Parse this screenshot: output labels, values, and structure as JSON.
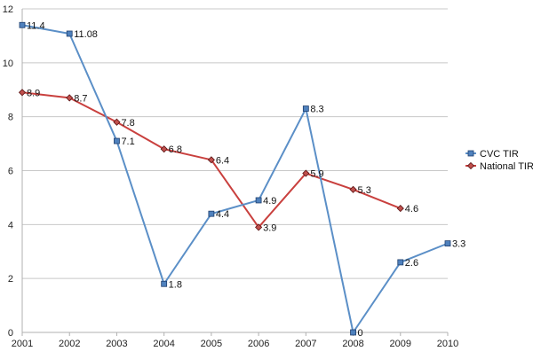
{
  "chart_data": {
    "type": "line",
    "title": "",
    "xlabel": "",
    "ylabel": "",
    "x": [
      "2001",
      "2002",
      "2003",
      "2004",
      "2005",
      "2006",
      "2007",
      "2008",
      "2009",
      "2010"
    ],
    "ylim": [
      0,
      12
    ],
    "yticks": [
      0,
      2,
      4,
      6,
      8,
      10,
      12
    ],
    "grid": "horizontal",
    "legend_position": "right",
    "series": [
      {
        "name": "CVC TIR",
        "color": "#5b8fc7",
        "marker": "square",
        "values": [
          11.4,
          11.08,
          7.1,
          1.8,
          4.4,
          4.9,
          8.3,
          0,
          2.6,
          3.3
        ],
        "labels": [
          "11.4",
          "11.08",
          "7.1",
          "1.8",
          "4.4",
          "4.9",
          "8.3",
          "0",
          "2.6",
          "3.3"
        ]
      },
      {
        "name": "National TIR",
        "color": "#c9403e",
        "marker": "diamond",
        "values": [
          8.9,
          8.7,
          7.8,
          6.8,
          6.4,
          3.9,
          5.9,
          5.3,
          4.6,
          null
        ],
        "labels": [
          "8.9",
          "8.7",
          "7.8",
          "6.8",
          "6.4",
          "3.9",
          "5.9",
          "5.3",
          "4.6",
          ""
        ]
      }
    ]
  }
}
